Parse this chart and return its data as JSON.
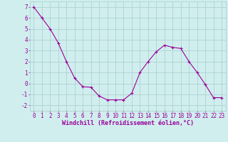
{
  "x": [
    0,
    1,
    2,
    3,
    4,
    5,
    6,
    7,
    8,
    9,
    10,
    11,
    12,
    13,
    14,
    15,
    16,
    17,
    18,
    19,
    20,
    21,
    22,
    23
  ],
  "y": [
    7,
    6,
    5,
    3.7,
    2,
    0.5,
    -0.3,
    -0.35,
    -1.15,
    -1.5,
    -1.5,
    -1.5,
    -0.9,
    1.0,
    2.0,
    2.9,
    3.5,
    3.3,
    3.2,
    2.0,
    1.0,
    -0.1,
    -1.3,
    -1.3
  ],
  "line_color": "#990099",
  "marker": "+",
  "marker_size": 3,
  "bg_color": "#d0eeee",
  "grid_color": "#a8cccc",
  "xlabel": "Windchill (Refroidissement éolien,°C)",
  "xlim": [
    -0.5,
    23.5
  ],
  "ylim": [
    -2.5,
    7.5
  ],
  "yticks": [
    -2,
    -1,
    0,
    1,
    2,
    3,
    4,
    5,
    6,
    7
  ],
  "xticks": [
    0,
    1,
    2,
    3,
    4,
    5,
    6,
    7,
    8,
    9,
    10,
    11,
    12,
    13,
    14,
    15,
    16,
    17,
    18,
    19,
    20,
    21,
    22,
    23
  ],
  "tick_fontsize": 5.5,
  "xlabel_fontsize": 6,
  "label_color": "#990099",
  "tick_color": "#990099"
}
